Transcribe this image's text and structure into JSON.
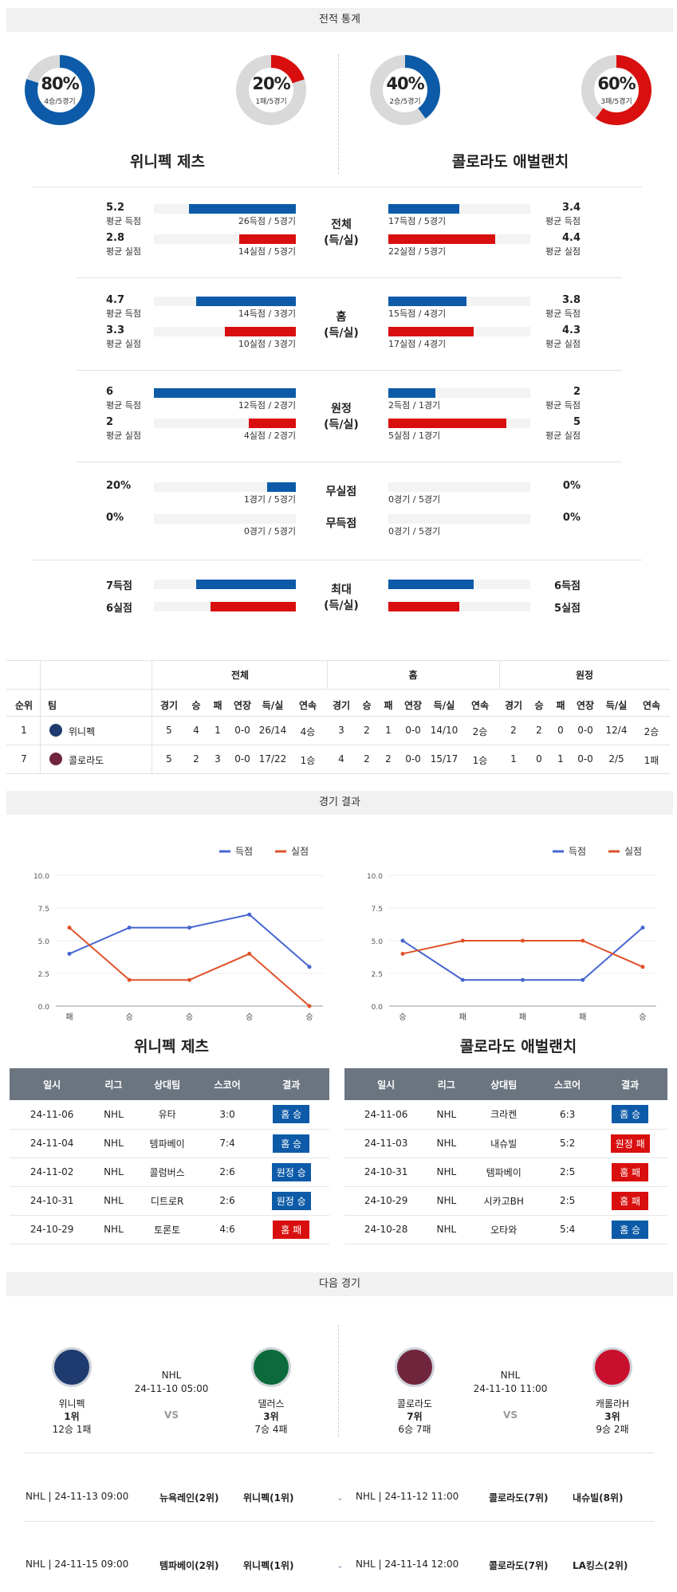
{
  "sections": {
    "stats": "전적 통계",
    "results": "경기 결과",
    "next": "다음 경기"
  },
  "donuts": [
    {
      "pct": "80%",
      "sub": "4승/5경기",
      "color": "#0d5ba8",
      "ratio": 0.8
    },
    {
      "pct": "20%",
      "sub": "1패/5경기",
      "color": "#d90f0f",
      "ratio": 0.2
    },
    {
      "pct": "40%",
      "sub": "2승/5경기",
      "color": "#0d5ba8",
      "ratio": 0.4
    },
    {
      "pct": "60%",
      "sub": "3패/5경기",
      "color": "#d90f0f",
      "ratio": 0.6
    }
  ],
  "teams": {
    "home": "위니펙 제츠",
    "away": "콜로라도 애벌랜치"
  },
  "groups": [
    {
      "label1": "전체",
      "label2": "(득/실)",
      "left": [
        {
          "val": "5.2",
          "lbl": "평균 득점",
          "cap": "26득점 / 5경기",
          "ratio": 0.75,
          "color": "blue"
        },
        {
          "val": "2.8",
          "lbl": "평균 실점",
          "cap": "14실점 / 5경기",
          "ratio": 0.4,
          "color": "red"
        }
      ],
      "right": [
        {
          "val": "3.4",
          "lbl": "평균 득점",
          "cap": "17득점 / 5경기",
          "ratio": 0.5,
          "color": "blue"
        },
        {
          "val": "4.4",
          "lbl": "평균 실점",
          "cap": "22실점 / 5경기",
          "ratio": 0.75,
          "color": "red"
        }
      ]
    },
    {
      "label1": "홈",
      "label2": "(득/실)",
      "left": [
        {
          "val": "4.7",
          "lbl": "평균 득점",
          "cap": "14득점 / 3경기",
          "ratio": 0.7,
          "color": "blue"
        },
        {
          "val": "3.3",
          "lbl": "평균 실점",
          "cap": "10실점 / 3경기",
          "ratio": 0.5,
          "color": "red"
        }
      ],
      "right": [
        {
          "val": "3.8",
          "lbl": "평균 득점",
          "cap": "15득점 / 4경기",
          "ratio": 0.55,
          "color": "blue"
        },
        {
          "val": "4.3",
          "lbl": "평균 실점",
          "cap": "17실점 / 4경기",
          "ratio": 0.6,
          "color": "red"
        }
      ]
    },
    {
      "label1": "원정",
      "label2": "(득/실)",
      "left": [
        {
          "val": "6",
          "lbl": "평균 득점",
          "cap": "12득점 / 2경기",
          "ratio": 1.0,
          "color": "blue"
        },
        {
          "val": "2",
          "lbl": "평균 실점",
          "cap": "4실점 / 2경기",
          "ratio": 0.33,
          "color": "red"
        }
      ],
      "right": [
        {
          "val": "2",
          "lbl": "평균 득점",
          "cap": "2득점 / 1경기",
          "ratio": 0.33,
          "color": "blue"
        },
        {
          "val": "5",
          "lbl": "평균 실점",
          "cap": "5실점 / 1경기",
          "ratio": 0.83,
          "color": "red"
        }
      ]
    }
  ],
  "shutouts": {
    "left": [
      {
        "val": "20%",
        "cap": "1경기 / 5경기",
        "ratio": 0.2
      },
      {
        "val": "0%",
        "cap": "0경기 / 5경기",
        "ratio": 0
      }
    ],
    "right": [
      {
        "val": "0%",
        "cap": "0경기 / 5경기",
        "ratio": 0
      },
      {
        "val": "0%",
        "cap": "0경기 / 5경기",
        "ratio": 0
      }
    ],
    "mid": [
      "무실점",
      "무득점"
    ]
  },
  "max": {
    "label1": "최대",
    "label2": "(득/실)",
    "left": [
      {
        "val": "7득점",
        "ratio": 0.7,
        "color": "blue"
      },
      {
        "val": "6실점",
        "ratio": 0.6,
        "color": "red"
      }
    ],
    "right": [
      {
        "val": "6득점",
        "ratio": 0.6,
        "color": "blue"
      },
      {
        "val": "5실점",
        "ratio": 0.5,
        "color": "red"
      }
    ]
  },
  "standings": {
    "groups": [
      "전체",
      "홈",
      "원정"
    ],
    "cols": [
      "순위",
      "팀",
      "경기",
      "승",
      "패",
      "연장",
      "득/실",
      "연속",
      "경기",
      "승",
      "패",
      "연장",
      "득/실",
      "연속",
      "경기",
      "승",
      "패",
      "연장",
      "득/실",
      "연속"
    ],
    "rows": [
      [
        "1",
        "위니펙",
        "5",
        "4",
        "1",
        "0-0",
        "26/14",
        "4승",
        "3",
        "2",
        "1",
        "0-0",
        "14/10",
        "2승",
        "2",
        "2",
        "0",
        "0-0",
        "12/4",
        "2승"
      ],
      [
        "7",
        "콜로라도",
        "5",
        "2",
        "3",
        "0-0",
        "17/22",
        "1승",
        "4",
        "2",
        "2",
        "0-0",
        "15/17",
        "1승",
        "1",
        "0",
        "1",
        "0-0",
        "2/5",
        "1패"
      ]
    ]
  },
  "chart_data": [
    {
      "type": "line",
      "title": "",
      "categories": [
        "패",
        "승",
        "승",
        "승",
        "승"
      ],
      "ylim": [
        0,
        10
      ],
      "yticks": [
        "0.0",
        "2.5",
        "5.0",
        "7.5",
        "10.0"
      ],
      "series": [
        {
          "name": "득점",
          "color": "#4565d0",
          "values": [
            4,
            6,
            6,
            7,
            3
          ]
        },
        {
          "name": "실점",
          "color": "#e0522a",
          "values": [
            6,
            2,
            2,
            4,
            0
          ]
        }
      ],
      "legend": "top-right"
    },
    {
      "type": "line",
      "title": "",
      "categories": [
        "승",
        "패",
        "패",
        "패",
        "승"
      ],
      "ylim": [
        0,
        10
      ],
      "yticks": [
        "0.0",
        "2.5",
        "5.0",
        "7.5",
        "10.0"
      ],
      "series": [
        {
          "name": "득점",
          "color": "#4565d0",
          "values": [
            5,
            2,
            2,
            2,
            6
          ]
        },
        {
          "name": "실점",
          "color": "#e0522a",
          "values": [
            4,
            5,
            5,
            5,
            3
          ]
        }
      ],
      "legend": "top-right"
    }
  ],
  "results": {
    "headers": [
      "일시",
      "리그",
      "상대팀",
      "스코어",
      "결과"
    ],
    "home": [
      [
        "24-11-06",
        "NHL",
        "유타",
        "3:0",
        "홈 승",
        "blue"
      ],
      [
        "24-11-04",
        "NHL",
        "템파베이",
        "7:4",
        "홈 승",
        "blue"
      ],
      [
        "24-11-02",
        "NHL",
        "콜럼버스",
        "2:6",
        "원정 승",
        "blue"
      ],
      [
        "24-10-31",
        "NHL",
        "디트로R",
        "2:6",
        "원정 승",
        "blue"
      ],
      [
        "24-10-29",
        "NHL",
        "토론토",
        "4:6",
        "홈 패",
        "red"
      ]
    ],
    "away": [
      [
        "24-11-06",
        "NHL",
        "크라켄",
        "6:3",
        "홈 승",
        "blue"
      ],
      [
        "24-11-03",
        "NHL",
        "내슈빌",
        "5:2",
        "원정 패",
        "red"
      ],
      [
        "24-10-31",
        "NHL",
        "템파베이",
        "2:5",
        "홈 패",
        "red"
      ],
      [
        "24-10-29",
        "NHL",
        "시카고BH",
        "2:5",
        "홈 패",
        "red"
      ],
      [
        "24-10-28",
        "NHL",
        "오타와",
        "5:4",
        "홈 승",
        "blue"
      ]
    ]
  },
  "next": {
    "left": {
      "league": "NHL",
      "time": "24-11-10 05:00",
      "vs": "VS",
      "t1": {
        "name": "위니펙",
        "rank": "1위",
        "rec": "12승 1패"
      },
      "t2": {
        "name": "댈러스",
        "rank": "3위",
        "rec": "7승 4패"
      }
    },
    "right": {
      "league": "NHL",
      "time": "24-11-10 11:00",
      "vs": "VS",
      "t1": {
        "name": "콜로라도",
        "rank": "7위",
        "rec": "6승 7패"
      },
      "t2": {
        "name": "캐롤라H",
        "rank": "3위",
        "rec": "9승 2패"
      }
    }
  },
  "upcoming": [
    {
      "l_info": "NHL | 24-11-13 09:00",
      "l_t1": "뉴욕레인(2위)",
      "l_t2": "위니펙(1위)",
      "r_info": "NHL | 24-11-12 11:00",
      "r_t1": "콜로라도(7위)",
      "r_t2": "내슈빌(8위)"
    },
    {
      "l_info": "NHL | 24-11-15 09:00",
      "l_t1": "템파베이(2위)",
      "l_t2": "위니펙(1위)",
      "r_info": "NHL | 24-11-14 12:00",
      "r_t1": "콜로라도(7위)",
      "r_t2": "LA킹스(2위)"
    }
  ]
}
